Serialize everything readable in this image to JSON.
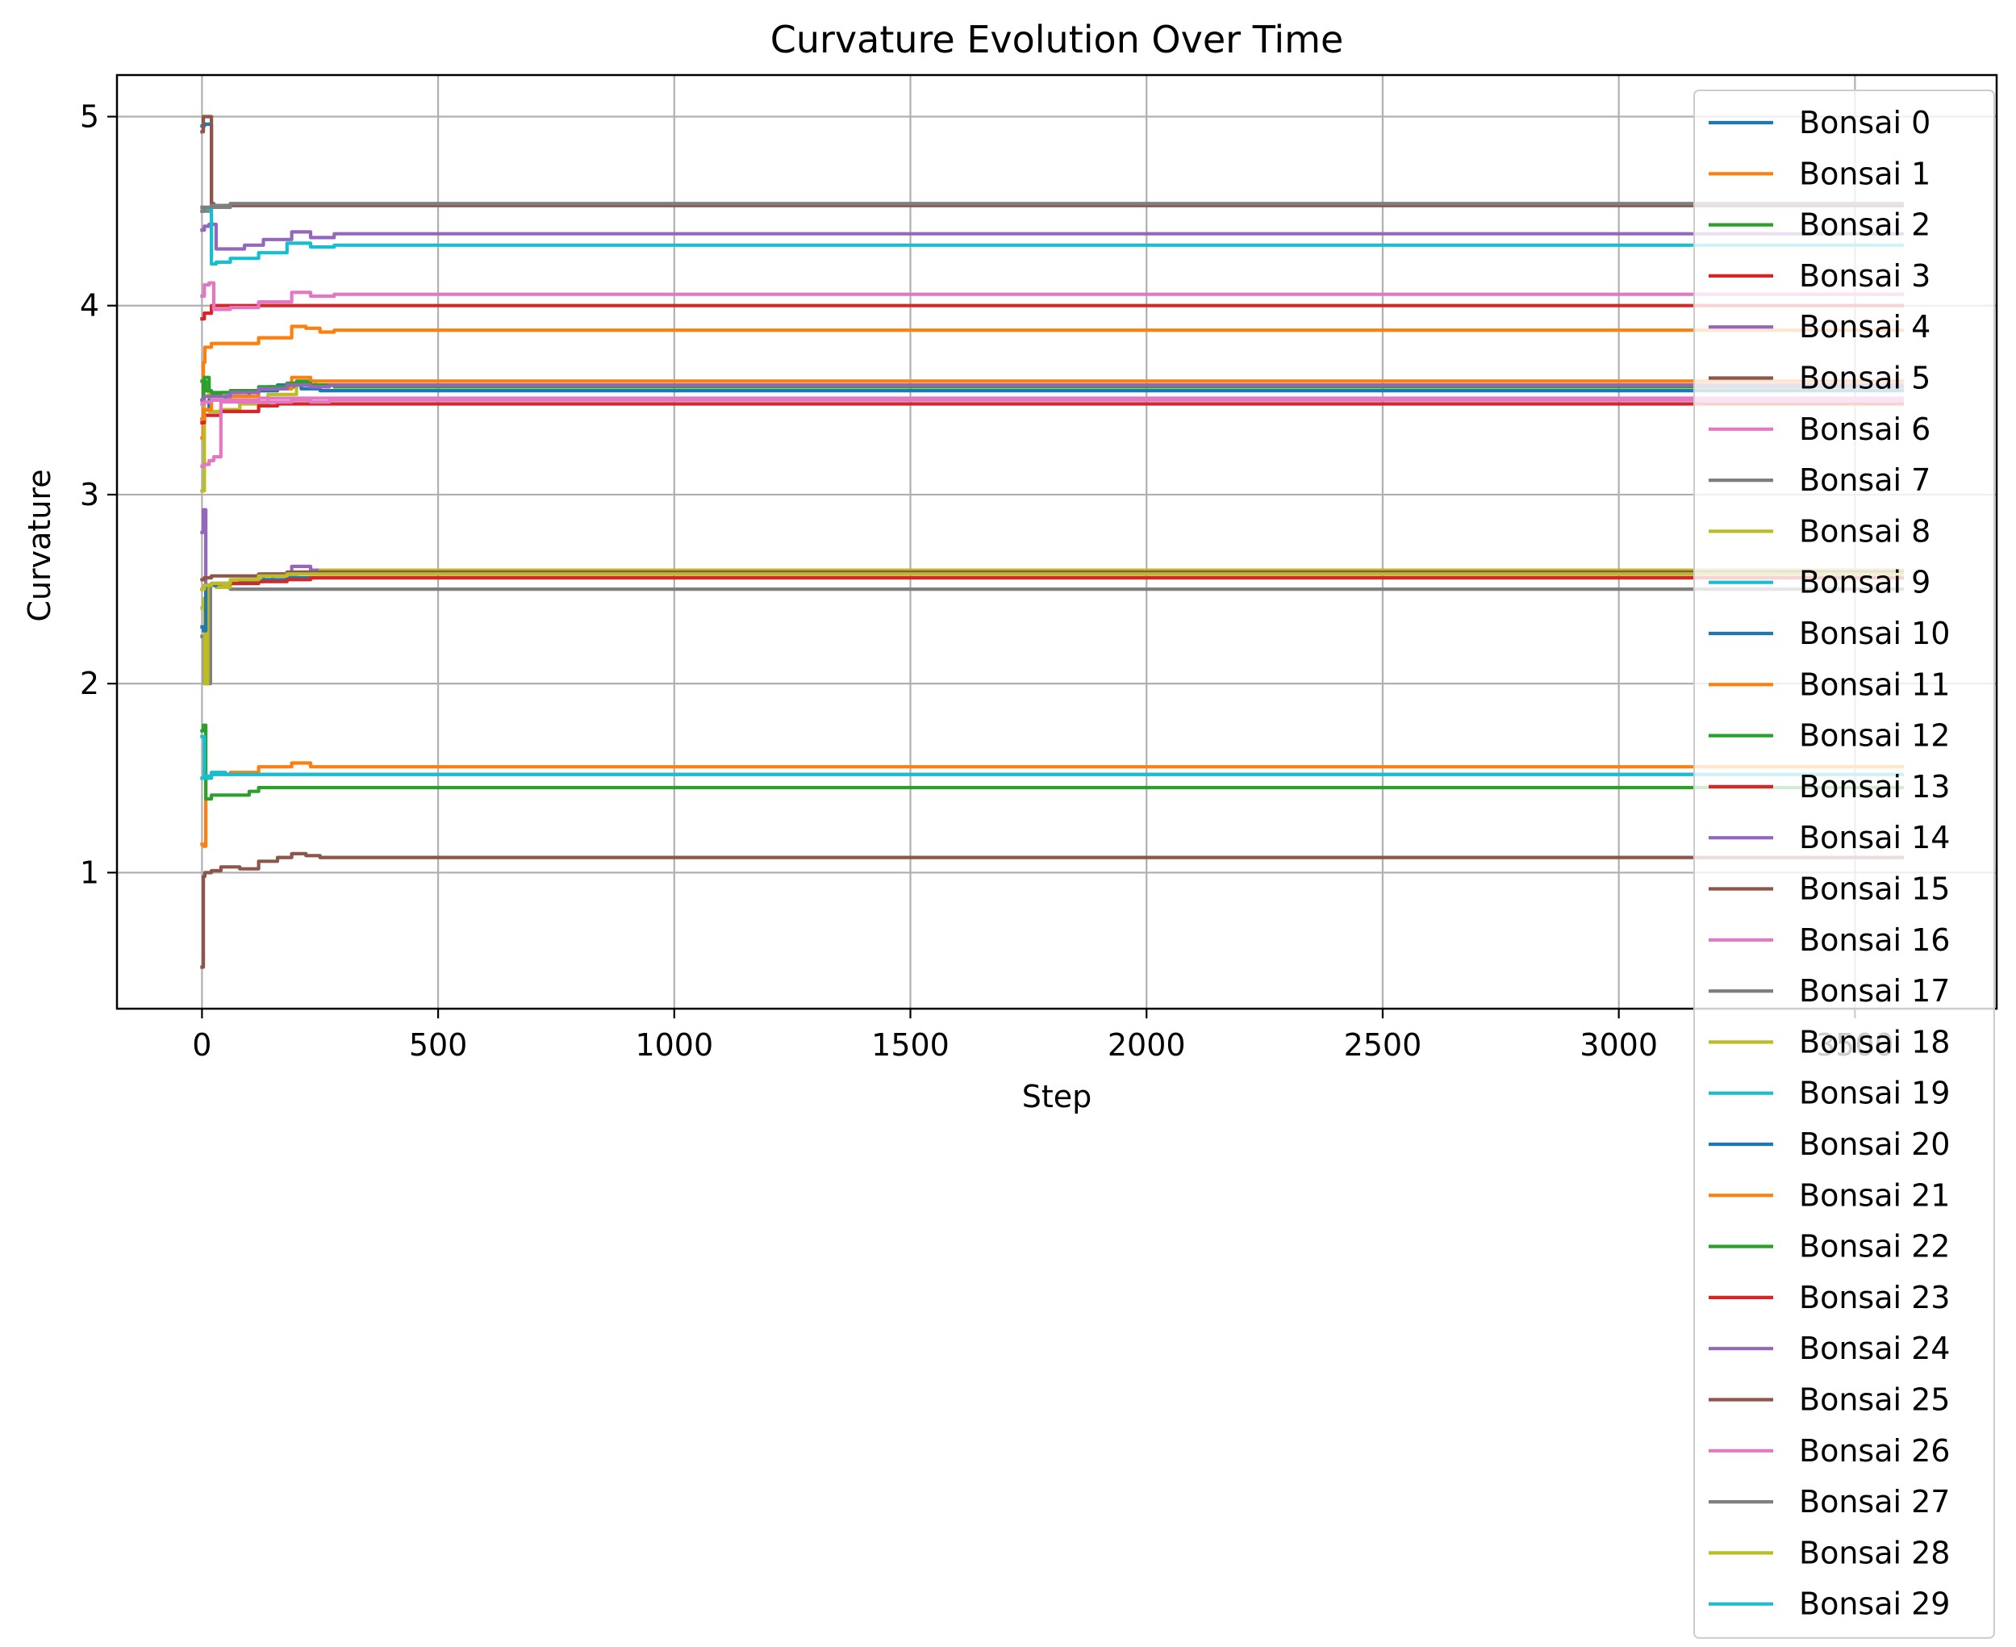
{
  "chart_data": {
    "type": "line",
    "title": "Curvature Evolution Over Time",
    "xlabel": "Step",
    "ylabel": "Curvature",
    "xlim": [
      -180,
      3800
    ],
    "ylim": [
      0.28,
      5.22
    ],
    "xticks": [
      0,
      500,
      1000,
      1500,
      2000,
      2500,
      3000,
      3500
    ],
    "xtick_labels": [
      "0",
      "500",
      "1000",
      "1500",
      "2000",
      "2500",
      "3000",
      "3500"
    ],
    "yticks": [
      1,
      2,
      3,
      4,
      5
    ],
    "ytick_labels": [
      "1",
      "2",
      "3",
      "4",
      "5"
    ],
    "grid": true,
    "legend_position": "upper-right",
    "series": [
      {
        "name": "Bonsai 0",
        "color": "#1f77b4",
        "x": [
          0,
          5,
          20,
          60,
          120,
          180,
          240,
          280,
          3600
        ],
        "y": [
          4.95,
          4.96,
          4.53,
          4.53,
          4.53,
          4.53,
          4.53,
          4.53,
          4.53
        ]
      },
      {
        "name": "Bonsai 1",
        "color": "#ff7f0e",
        "x": [
          0,
          3,
          6,
          20,
          60,
          120,
          190,
          220,
          250,
          280,
          3600
        ],
        "y": [
          3.3,
          3.7,
          3.78,
          3.8,
          3.8,
          3.83,
          3.89,
          3.88,
          3.86,
          3.87,
          3.87
        ]
      },
      {
        "name": "Bonsai 2",
        "color": "#2ca02c",
        "x": [
          0,
          5,
          15,
          40,
          80,
          140,
          200,
          240,
          280,
          3600
        ],
        "y": [
          3.6,
          3.62,
          3.53,
          3.54,
          3.55,
          3.57,
          3.6,
          3.58,
          3.57,
          3.57
        ]
      },
      {
        "name": "Bonsai 3",
        "color": "#d62728",
        "x": [
          0,
          5,
          20,
          50,
          100,
          150,
          3600
        ],
        "y": [
          3.93,
          3.96,
          4.0,
          4.0,
          4.0,
          4.0,
          4.0
        ]
      },
      {
        "name": "Bonsai 4",
        "color": "#9467bd",
        "x": [
          0,
          5,
          15,
          30,
          60,
          90,
          130,
          190,
          230,
          280,
          3600
        ],
        "y": [
          4.4,
          4.42,
          4.43,
          4.3,
          4.3,
          4.32,
          4.35,
          4.39,
          4.36,
          4.38,
          4.38
        ]
      },
      {
        "name": "Bonsai 5",
        "color": "#8c564b",
        "x": [
          0,
          3,
          8,
          15,
          20,
          25,
          3600
        ],
        "y": [
          4.92,
          5.0,
          5.0,
          5.0,
          4.54,
          4.53,
          4.53
        ]
      },
      {
        "name": "Bonsai 6",
        "color": "#e377c2",
        "x": [
          0,
          5,
          15,
          25,
          60,
          120,
          190,
          230,
          280,
          3600
        ],
        "y": [
          4.05,
          4.11,
          4.12,
          3.98,
          3.99,
          4.02,
          4.07,
          4.05,
          4.06,
          4.06
        ]
      },
      {
        "name": "Bonsai 7",
        "color": "#7f7f7f",
        "x": [
          0,
          5,
          15,
          25,
          60,
          90,
          3600
        ],
        "y": [
          4.52,
          4.5,
          4.52,
          4.52,
          4.54,
          4.54,
          4.54
        ]
      },
      {
        "name": "Bonsai 8",
        "color": "#bcbd22",
        "x": [
          0,
          5,
          15,
          40,
          80,
          140,
          200,
          240,
          3600
        ],
        "y": [
          3.02,
          3.55,
          3.44,
          3.45,
          3.48,
          3.53,
          3.58,
          3.6,
          3.6
        ]
      },
      {
        "name": "Bonsai 9",
        "color": "#17becf",
        "x": [
          0,
          5,
          15,
          20,
          30,
          60,
          120,
          180,
          230,
          280,
          3600
        ],
        "y": [
          4.5,
          4.51,
          4.52,
          4.22,
          4.23,
          4.25,
          4.28,
          4.33,
          4.31,
          4.32,
          4.32
        ]
      },
      {
        "name": "Bonsai 10",
        "color": "#1f77b4",
        "x": [
          0,
          5,
          15,
          50,
          100,
          160,
          210,
          250,
          280,
          3600
        ],
        "y": [
          3.4,
          3.45,
          3.5,
          3.52,
          3.55,
          3.58,
          3.56,
          3.55,
          3.55,
          3.55
        ]
      },
      {
        "name": "Bonsai 11",
        "color": "#ff7f0e",
        "x": [
          0,
          4,
          8,
          20,
          60,
          120,
          190,
          230,
          270,
          3600
        ],
        "y": [
          1.15,
          1.14,
          1.5,
          1.52,
          1.53,
          1.56,
          1.58,
          1.56,
          1.56,
          1.56
        ]
      },
      {
        "name": "Bonsai 12",
        "color": "#2ca02c",
        "x": [
          0,
          3,
          8,
          20,
          60,
          100,
          120,
          3600
        ],
        "y": [
          1.75,
          1.78,
          1.39,
          1.41,
          1.41,
          1.43,
          1.45,
          1.45
        ]
      },
      {
        "name": "Bonsai 13",
        "color": "#d62728",
        "x": [
          0,
          5,
          15,
          40,
          80,
          120,
          160,
          200,
          3600
        ],
        "y": [
          3.38,
          3.42,
          3.42,
          3.44,
          3.44,
          3.47,
          3.48,
          3.48,
          3.48
        ]
      },
      {
        "name": "Bonsai 14",
        "color": "#9467bd",
        "x": [
          0,
          3,
          8,
          15,
          40,
          80,
          130,
          190,
          230,
          270,
          3600
        ],
        "y": [
          2.8,
          2.92,
          2.5,
          2.52,
          2.53,
          2.55,
          2.58,
          2.62,
          2.6,
          2.6,
          2.6
        ]
      },
      {
        "name": "Bonsai 15",
        "color": "#8c564b",
        "x": [
          0,
          3,
          6,
          20,
          40,
          80,
          120,
          160,
          190,
          220,
          250,
          3600
        ],
        "y": [
          0.5,
          0.98,
          1.0,
          1.01,
          1.03,
          1.02,
          1.06,
          1.08,
          1.1,
          1.09,
          1.08,
          1.08
        ]
      },
      {
        "name": "Bonsai 16",
        "color": "#e377c2",
        "x": [
          0,
          5,
          15,
          25,
          40,
          80,
          130,
          190,
          230,
          270,
          3600
        ],
        "y": [
          3.15,
          3.16,
          3.18,
          3.2,
          3.49,
          3.49,
          3.49,
          3.5,
          3.49,
          3.5,
          3.5
        ]
      },
      {
        "name": "Bonsai 17",
        "color": "#7f7f7f",
        "x": [
          0,
          5,
          12,
          18,
          30,
          60,
          100,
          3600
        ],
        "y": [
          2.25,
          2.0,
          2.0,
          2.52,
          2.51,
          2.5,
          2.5,
          2.5
        ]
      },
      {
        "name": "Bonsai 18",
        "color": "#bcbd22",
        "x": [
          0,
          3,
          6,
          12,
          30,
          60,
          100,
          150,
          200,
          250,
          3600
        ],
        "y": [
          2.4,
          2.45,
          2.0,
          2.52,
          2.51,
          2.53,
          2.55,
          2.57,
          2.59,
          2.6,
          2.6
        ]
      },
      {
        "name": "Bonsai 19",
        "color": "#17becf",
        "x": [
          0,
          5,
          20,
          50,
          100,
          3600
        ],
        "y": [
          1.72,
          1.5,
          1.53,
          1.52,
          1.52,
          1.52
        ]
      },
      {
        "name": "Bonsai 20",
        "color": "#1f77b4",
        "x": [
          0,
          3,
          8,
          30,
          80,
          130,
          180,
          3600
        ],
        "y": [
          2.3,
          2.28,
          2.52,
          2.53,
          2.54,
          2.55,
          2.56,
          2.56
        ]
      },
      {
        "name": "Bonsai 21",
        "color": "#ff7f0e",
        "x": [
          0,
          5,
          20,
          60,
          120,
          190,
          230,
          270,
          3600
        ],
        "y": [
          3.4,
          3.45,
          3.5,
          3.52,
          3.56,
          3.62,
          3.6,
          3.6,
          3.6
        ]
      },
      {
        "name": "Bonsai 22",
        "color": "#2ca02c",
        "x": [
          0,
          3,
          8,
          20,
          60,
          120,
          180,
          230,
          270,
          3600
        ],
        "y": [
          3.5,
          3.6,
          3.55,
          3.54,
          3.55,
          3.57,
          3.59,
          3.58,
          3.58,
          3.58
        ]
      },
      {
        "name": "Bonsai 23",
        "color": "#d62728",
        "x": [
          0,
          5,
          20,
          60,
          120,
          180,
          230,
          270,
          3600
        ],
        "y": [
          2.5,
          2.52,
          2.53,
          2.53,
          2.54,
          2.55,
          2.56,
          2.56,
          2.56
        ]
      },
      {
        "name": "Bonsai 24",
        "color": "#9467bd",
        "x": [
          0,
          5,
          20,
          60,
          120,
          180,
          230,
          270,
          3600
        ],
        "y": [
          3.5,
          3.52,
          3.52,
          3.54,
          3.56,
          3.58,
          3.57,
          3.58,
          3.58
        ]
      },
      {
        "name": "Bonsai 25",
        "color": "#8c564b",
        "x": [
          0,
          5,
          20,
          60,
          120,
          180,
          230,
          270,
          3600
        ],
        "y": [
          2.55,
          2.56,
          2.57,
          2.57,
          2.58,
          2.59,
          2.59,
          2.59,
          2.59
        ]
      },
      {
        "name": "Bonsai 26",
        "color": "#e377c2",
        "x": [
          0,
          5,
          20,
          60,
          120,
          180,
          3600
        ],
        "y": [
          3.48,
          3.49,
          3.5,
          3.5,
          3.51,
          3.51,
          3.51
        ]
      },
      {
        "name": "Bonsai 27",
        "color": "#7f7f7f",
        "x": [
          0,
          5,
          20,
          60,
          120,
          3600
        ],
        "y": [
          4.5,
          4.52,
          4.53,
          4.54,
          4.54,
          4.54
        ]
      },
      {
        "name": "Bonsai 28",
        "color": "#bcbd22",
        "x": [
          0,
          5,
          20,
          60,
          120,
          180,
          230,
          3600
        ],
        "y": [
          2.5,
          2.52,
          2.53,
          2.55,
          2.57,
          2.58,
          2.58,
          2.58
        ]
      },
      {
        "name": "Bonsai 29",
        "color": "#17becf",
        "x": [
          0,
          5,
          20,
          60,
          120,
          3600
        ],
        "y": [
          1.5,
          1.51,
          1.52,
          1.52,
          1.52,
          1.52
        ]
      }
    ]
  }
}
